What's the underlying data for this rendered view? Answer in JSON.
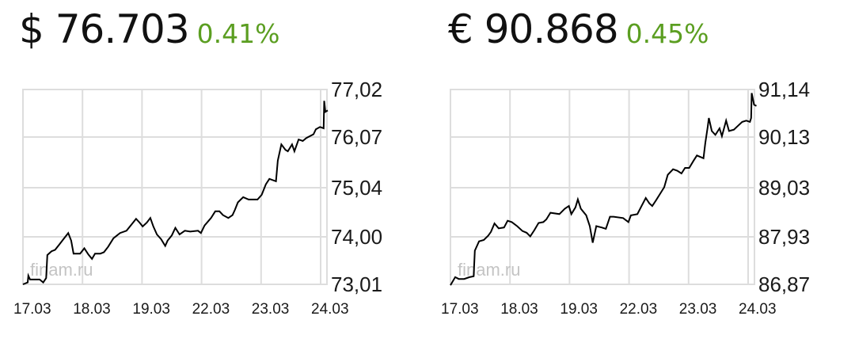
{
  "quotes": [
    {
      "price": "$ 76.703",
      "change": "0.41%"
    },
    {
      "price": "€ 90.868",
      "change": "0.45%"
    }
  ],
  "colors": {
    "change": "#5b9e21",
    "price": "#111111",
    "grid": "#dddddd",
    "line": "#000000"
  },
  "chart_data": [
    {
      "type": "line",
      "watermark": "finam.ru",
      "x_tick_labels": [
        "17.03",
        "18.03",
        "19.03",
        "22.03",
        "23.03",
        "24.03"
      ],
      "y_ticks": [
        73.01,
        74.0,
        75.04,
        76.07,
        77.02
      ],
      "y_tick_labels": [
        "73,01",
        "74,00",
        "75,04",
        "76,07",
        "77,02"
      ],
      "grid": true,
      "y_axis": "right",
      "x": [
        0,
        0.08,
        0.09,
        0.12,
        0.28,
        0.34,
        0.39,
        0.41,
        0.48,
        0.54,
        0.61,
        0.68,
        0.76,
        0.81,
        0.85,
        0.96,
        1.03,
        1.1,
        1.16,
        1.21,
        1.3,
        1.36,
        1.43,
        1.52,
        1.63,
        1.74,
        1.83,
        1.9,
        1.96,
        2.01,
        2.08,
        2.14,
        2.19,
        2.25,
        2.32,
        2.39,
        2.43,
        2.5,
        2.56,
        2.63,
        2.72,
        2.81,
        2.94,
        2.99,
        3.05,
        3.16,
        3.23,
        3.3,
        3.36,
        3.45,
        3.52,
        3.56,
        3.61,
        3.7,
        3.79,
        3.94,
        4.01,
        4.08,
        4.14,
        4.25,
        4.28,
        4.34,
        4.41,
        4.45,
        4.52,
        4.56,
        4.63,
        4.7,
        4.76,
        4.88,
        4.92,
        4.99,
        5.05,
        5.06,
        5.08,
        5.12
      ],
      "y": [
        73.01,
        73.05,
        73.19,
        73.11,
        73.11,
        73.05,
        73.14,
        73.62,
        73.7,
        73.73,
        73.84,
        73.95,
        74.08,
        73.92,
        73.65,
        73.65,
        73.76,
        73.63,
        73.54,
        73.65,
        73.65,
        73.68,
        73.79,
        73.97,
        74.08,
        74.13,
        74.27,
        74.38,
        74.3,
        74.22,
        74.3,
        74.4,
        74.22,
        74.05,
        73.95,
        73.81,
        73.92,
        74.03,
        74.19,
        74.05,
        74.13,
        74.11,
        74.13,
        74.08,
        74.24,
        74.4,
        74.54,
        74.54,
        74.46,
        74.4,
        74.46,
        74.57,
        74.73,
        74.84,
        74.79,
        74.79,
        74.89,
        75.11,
        75.22,
        75.17,
        75.59,
        75.92,
        75.81,
        75.78,
        75.92,
        75.78,
        76.02,
        75.99,
        76.05,
        76.13,
        76.24,
        76.29,
        76.26,
        76.86,
        76.62,
        76.65
      ]
    },
    {
      "type": "line",
      "watermark": "finam.ru",
      "x_tick_labels": [
        "17.03",
        "18.03",
        "19.03",
        "22.03",
        "23.03",
        "24.03"
      ],
      "y_ticks": [
        86.87,
        87.93,
        89.03,
        90.13,
        91.14
      ],
      "y_tick_labels": [
        "86,87",
        "87,93",
        "89,03",
        "90,13",
        "91,14"
      ],
      "grid": true,
      "y_axis": "right",
      "x": [
        0,
        0.08,
        0.14,
        0.23,
        0.32,
        0.39,
        0.41,
        0.48,
        0.56,
        0.63,
        0.68,
        0.74,
        0.81,
        0.9,
        0.96,
        1.03,
        1.12,
        1.21,
        1.28,
        1.34,
        1.41,
        1.48,
        1.56,
        1.61,
        1.68,
        1.83,
        1.92,
        1.99,
        2.03,
        2.1,
        2.14,
        2.19,
        2.28,
        2.34,
        2.39,
        2.45,
        2.54,
        2.61,
        2.68,
        2.74,
        2.9,
        2.99,
        3.03,
        3.14,
        3.21,
        3.28,
        3.34,
        3.39,
        3.45,
        3.52,
        3.59,
        3.65,
        3.74,
        3.81,
        3.88,
        3.94,
        4.01,
        4.08,
        4.14,
        4.25,
        4.28,
        4.32,
        4.34,
        4.39,
        4.45,
        4.52,
        4.56,
        4.63,
        4.68,
        4.76,
        4.83,
        4.9,
        4.97,
        5.03,
        5.05,
        5.06,
        5.1,
        5.14
      ],
      "y": [
        86.85,
        87.03,
        86.99,
        86.99,
        87.03,
        87.05,
        87.62,
        87.83,
        87.86,
        87.95,
        88.04,
        88.23,
        88.12,
        88.14,
        88.29,
        88.26,
        88.17,
        88.06,
        88.02,
        87.94,
        88.08,
        88.24,
        88.26,
        88.32,
        88.47,
        88.44,
        88.56,
        88.62,
        88.44,
        88.59,
        88.77,
        88.56,
        88.41,
        88.17,
        87.8,
        88.17,
        88.14,
        88.11,
        88.38,
        88.38,
        88.35,
        88.26,
        88.41,
        88.44,
        88.62,
        88.8,
        88.68,
        88.62,
        88.74,
        88.89,
        89.04,
        89.31,
        89.43,
        89.4,
        89.34,
        89.46,
        89.46,
        89.61,
        89.73,
        89.67,
        90.0,
        90.36,
        90.57,
        90.27,
        90.18,
        90.33,
        90.15,
        90.51,
        90.27,
        90.3,
        90.39,
        90.48,
        90.51,
        90.48,
        90.57,
        91.15,
        90.88,
        90.85
      ]
    }
  ]
}
